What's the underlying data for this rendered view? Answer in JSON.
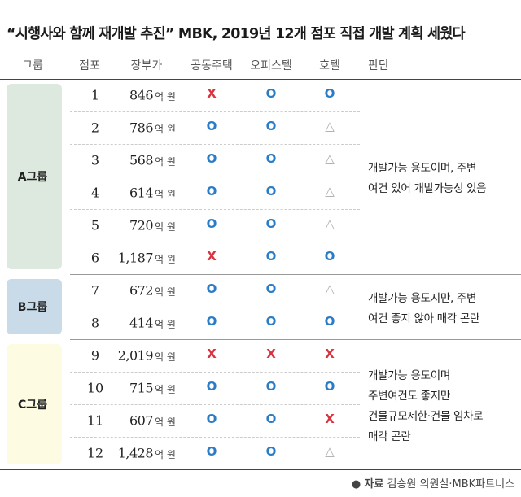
{
  "title": "“시행사와 함께 재개발 추진” MBK, 2019년 12개 점포 직접 개발 계획 세웠다",
  "columns": [
    "그룹",
    "점포",
    "장부가",
    "공동주택",
    "오피스텔",
    "호텔",
    "판단"
  ],
  "unit": "억 원",
  "groups": [
    {
      "label": "A그룹",
      "judgment": [
        "개발가능 용도이며, 주변",
        "여건 있어 개발가능성 있음"
      ],
      "rows": [
        [
          "1",
          "846",
          "X",
          "O",
          "O"
        ],
        [
          "2",
          "786",
          "O",
          "O",
          "△"
        ],
        [
          "3",
          "568",
          "O",
          "O",
          "△"
        ],
        [
          "4",
          "614",
          "O",
          "O",
          "△"
        ],
        [
          "5",
          "720",
          "O",
          "O",
          "△"
        ],
        [
          "6",
          "1,187",
          "X",
          "O",
          "O"
        ]
      ]
    },
    {
      "label": "B그룹",
      "judgment": [
        "개발가능 용도지만, 주변",
        "여건 좋지 않아 매각 곤란"
      ],
      "rows": [
        [
          "7",
          "672",
          "O",
          "O",
          "△"
        ],
        [
          "8",
          "414",
          "O",
          "O",
          "O"
        ]
      ]
    },
    {
      "label": "C그룹",
      "judgment": [
        "개발가능 용도이며",
        "주변여건도 좋지만",
        "건물규모제한·건물 임차로",
        "매각 곤란"
      ],
      "rows": [
        [
          "9",
          "2,019",
          "X",
          "X",
          "X"
        ],
        [
          "10",
          "715",
          "O",
          "O",
          "O"
        ],
        [
          "11",
          "607",
          "O",
          "O",
          "X"
        ],
        [
          "12",
          "1,428",
          "O",
          "O",
          "△"
        ]
      ]
    }
  ],
  "source": {
    "label": "자료",
    "text": "김승원 의원실·MBK파트너스"
  }
}
